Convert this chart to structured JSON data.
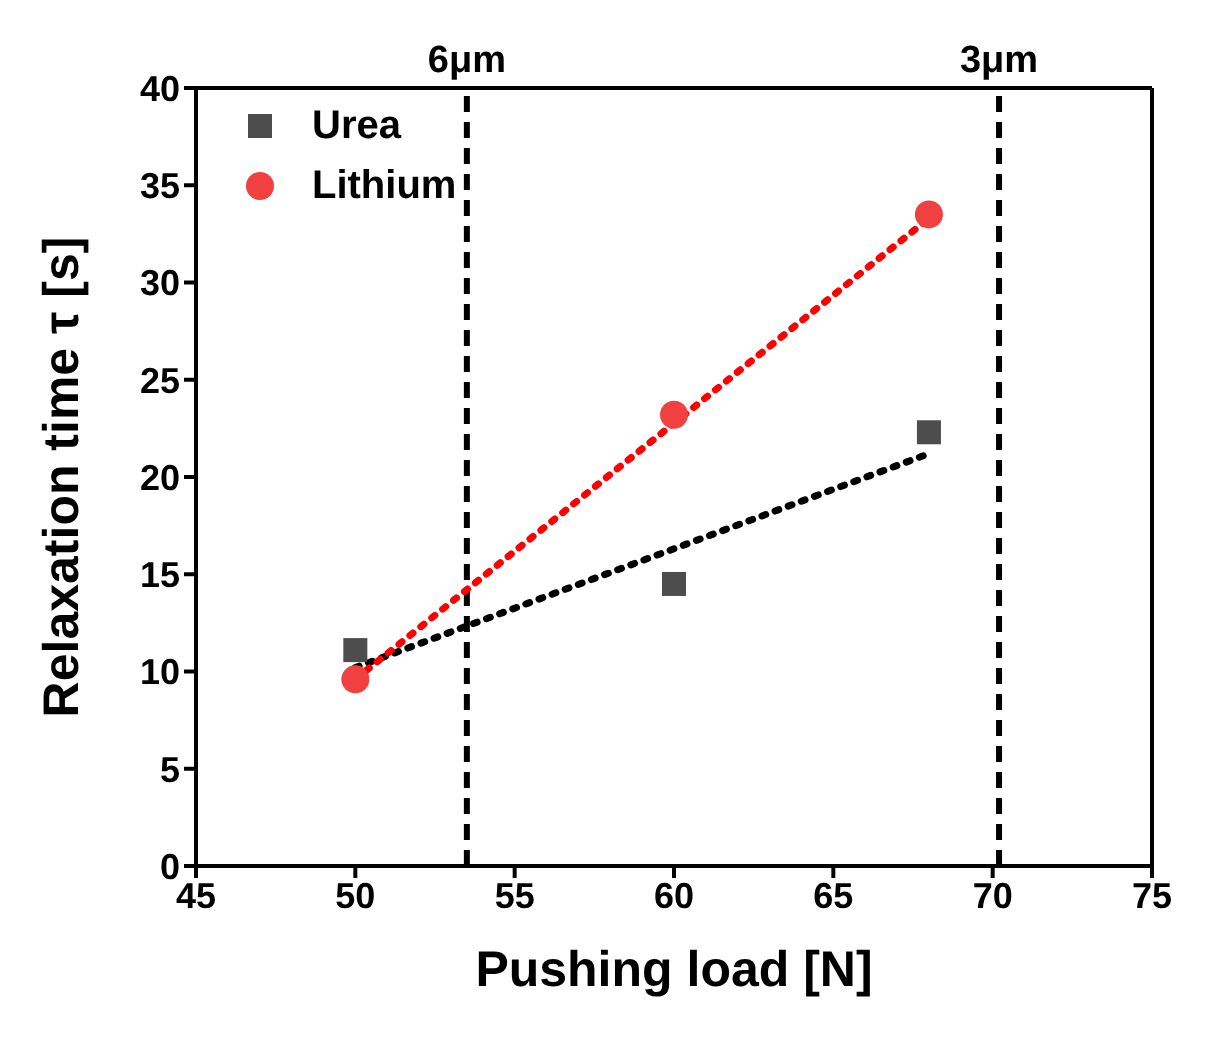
{
  "chart_data": {
    "type": "scatter",
    "xlabel": "Pushing load [N]",
    "ylabel": "Relaxation time τ [s]",
    "xlim": [
      45,
      75
    ],
    "xticks": [
      45,
      50,
      55,
      60,
      65,
      70,
      75
    ],
    "ylim": [
      0,
      40
    ],
    "yticks": [
      0,
      5,
      10,
      15,
      20,
      25,
      30,
      35,
      40
    ],
    "grid": false,
    "legend": "top left",
    "series": [
      {
        "name": "Urea",
        "marker": "square",
        "color": "#4d4d4d",
        "x": [
          50,
          60,
          68
        ],
        "values": [
          11.1,
          14.5,
          22.3
        ]
      },
      {
        "name": "Lithium",
        "marker": "circle",
        "color": "#f04040",
        "x": [
          50,
          60,
          68
        ],
        "values": [
          9.6,
          23.2,
          33.5
        ]
      },
      {
        "type": "line",
        "marker": "none",
        "line_style": "dotted",
        "color": "#000000",
        "x": [
          50,
          68
        ],
        "values": [
          10.2,
          21.2
        ]
      },
      {
        "type": "line",
        "marker": "none",
        "line_style": "dotted",
        "color": "#ff0000",
        "x": [
          50,
          68
        ],
        "values": [
          9.6,
          33.3
        ]
      }
    ],
    "ref_lines": [
      {
        "axis": "x",
        "value": 53.5,
        "label": "6μm",
        "color": "#000000",
        "line_style": "dashed"
      },
      {
        "axis": "x",
        "value": 70.2,
        "label": "3μm",
        "color": "#000000",
        "line_style": "dashed"
      }
    ]
  }
}
